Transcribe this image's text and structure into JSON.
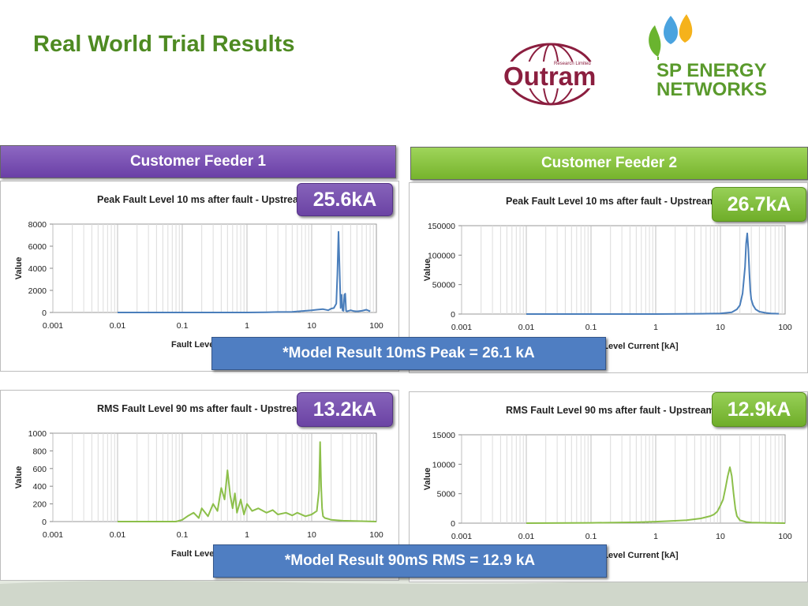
{
  "slide": {
    "title": "Real World Trial Results"
  },
  "logos": {
    "outram": {
      "name": "Outram",
      "sub": "Research Limited",
      "color": "#8b1e3f"
    },
    "sp": {
      "line1": "SP ENERGY",
      "line2": "NETWORKS",
      "color": "#5a9a2c"
    }
  },
  "headers": {
    "feeder1": "Customer Feeder 1",
    "feeder2": "Customer Feeder 2"
  },
  "badges": {
    "f1_peak": "25.6kA",
    "f2_peak": "26.7kA",
    "f1_rms": "13.2kA",
    "f2_rms": "12.9kA"
  },
  "results": {
    "peak": "*Model Result 10mS Peak = 26.1 kA",
    "rms": "*Model Result 90mS RMS = 12.9 kA"
  },
  "colors": {
    "purple": "#6a3fa6",
    "green": "#76b32c",
    "peak_line": "#4a7ebb",
    "rms_line": "#8cbf4a",
    "result_box": "#4f7ec2"
  },
  "chart_data": [
    {
      "id": "f1_peak",
      "type": "line",
      "title": "Peak Fault Level 10 ms after fault - Upstream",
      "xlabel": "Fault Level Current [kA]",
      "ylabel": "Value",
      "xscale": "log",
      "xlim": [
        0.001,
        100
      ],
      "ylim": [
        0,
        8000
      ],
      "yticks": [
        0,
        2000,
        4000,
        6000,
        8000
      ],
      "xticks": [
        "0.001",
        "0.01",
        "0.1",
        "1",
        "10",
        "100"
      ],
      "grid": true,
      "series": [
        {
          "x": [
            0.01,
            0.1,
            1,
            2,
            3,
            5,
            8,
            10,
            12,
            15,
            18,
            20,
            22,
            24,
            25,
            26,
            27,
            28,
            29,
            30,
            31,
            32,
            33,
            34,
            35,
            40,
            45,
            50,
            60,
            70,
            80
          ],
          "y": [
            0,
            0,
            0,
            20,
            40,
            60,
            150,
            200,
            250,
            300,
            200,
            350,
            400,
            800,
            3500,
            7300,
            3800,
            400,
            1600,
            200,
            150,
            1600,
            1700,
            150,
            100,
            200,
            120,
            100,
            150,
            250,
            100
          ]
        }
      ]
    },
    {
      "id": "f2_peak",
      "type": "line",
      "title": "Peak Fault Level 10 ms after fault - Upstream",
      "xlabel": "Fault Level Current [kA]",
      "ylabel": "Value",
      "xscale": "log",
      "xlim": [
        0.001,
        100
      ],
      "ylim": [
        0,
        150000
      ],
      "yticks": [
        0,
        50000,
        100000,
        150000
      ],
      "xticks": [
        "0.001",
        "0.01",
        "0.1",
        "1",
        "10",
        "100"
      ],
      "grid": true,
      "series": [
        {
          "x": [
            0.01,
            0.1,
            1,
            5,
            10,
            15,
            18,
            20,
            22,
            24,
            25,
            26,
            27,
            28,
            29,
            30,
            32,
            35,
            40,
            50,
            60,
            80
          ],
          "y": [
            0,
            0,
            0,
            500,
            1000,
            3000,
            8000,
            15000,
            35000,
            80000,
            120000,
            137000,
            110000,
            70000,
            40000,
            25000,
            15000,
            8000,
            4000,
            2000,
            1000,
            500
          ]
        }
      ]
    },
    {
      "id": "f1_rms",
      "type": "line",
      "title": "RMS Fault Level 90 ms after fault - Upstream",
      "xlabel": "Fault Level Current [kA]",
      "ylabel": "Value",
      "xscale": "log",
      "xlim": [
        0.001,
        100
      ],
      "ylim": [
        0,
        1000
      ],
      "yticks": [
        0,
        200,
        400,
        600,
        800,
        1000
      ],
      "xticks": [
        "0.001",
        "0.01",
        "0.1",
        "1",
        "10",
        "100"
      ],
      "grid": true,
      "series": [
        {
          "x": [
            0.01,
            0.08,
            0.1,
            0.12,
            0.15,
            0.18,
            0.2,
            0.25,
            0.3,
            0.35,
            0.4,
            0.45,
            0.5,
            0.55,
            0.6,
            0.65,
            0.7,
            0.8,
            0.9,
            1,
            1.2,
            1.5,
            2,
            2.5,
            3,
            4,
            5,
            6,
            8,
            10,
            12,
            13,
            13.5,
            14,
            14.5,
            15,
            16,
            18,
            20,
            30,
            50,
            100
          ],
          "y": [
            0,
            0,
            20,
            60,
            100,
            40,
            150,
            60,
            200,
            120,
            380,
            250,
            580,
            300,
            150,
            320,
            100,
            250,
            80,
            200,
            120,
            150,
            100,
            130,
            80,
            100,
            70,
            100,
            60,
            80,
            120,
            350,
            900,
            400,
            150,
            60,
            40,
            30,
            20,
            10,
            5,
            0
          ]
        }
      ]
    },
    {
      "id": "f2_rms",
      "type": "line",
      "title": "RMS Fault Level 90 ms after fault - Upstream",
      "xlabel": "Fault Level Current [kA]",
      "ylabel": "Value",
      "xscale": "log",
      "xlim": [
        0.001,
        100
      ],
      "ylim": [
        0,
        15000
      ],
      "yticks": [
        0,
        5000,
        10000,
        15000
      ],
      "xticks": [
        "0.001",
        "0.01",
        "0.1",
        "1",
        "10",
        "100"
      ],
      "grid": true,
      "series": [
        {
          "x": [
            0.01,
            0.1,
            0.5,
            1,
            2,
            3,
            5,
            7,
            8,
            9,
            10,
            11,
            12,
            13,
            14,
            15,
            16,
            17,
            18,
            20,
            25,
            30,
            50,
            100
          ],
          "y": [
            0,
            50,
            150,
            250,
            400,
            500,
            800,
            1200,
            1500,
            2000,
            3000,
            4000,
            6000,
            8000,
            9500,
            8000,
            5000,
            2500,
            1200,
            500,
            200,
            100,
            50,
            0
          ]
        }
      ]
    }
  ]
}
